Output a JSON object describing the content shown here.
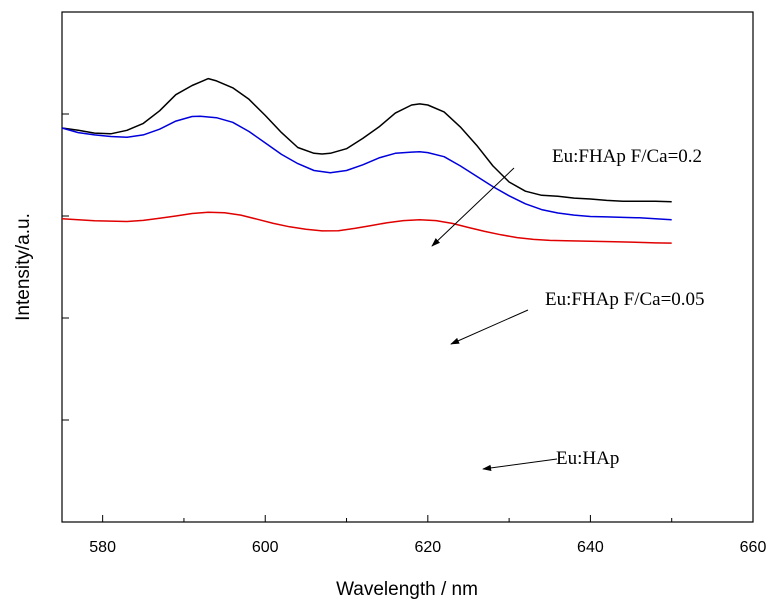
{
  "chart_data": {
    "type": "line",
    "title": "",
    "xlabel": "Wavelength / nm",
    "ylabel": "Intensity/a.u.",
    "xlim": [
      575,
      660
    ],
    "ylim": [
      0,
      100
    ],
    "x_ticks": [
      "580",
      "600",
      "620",
      "640",
      "660"
    ],
    "y_tick_labels_shown": false,
    "grid": false,
    "legend": "none (series identified by arrow annotations)",
    "series": [
      {
        "name": "Eu:FHAp  F/Ca=0.2",
        "color": "#000000",
        "points": [
          [
            575,
            49.5
          ],
          [
            577,
            48.5
          ],
          [
            579,
            47.3
          ],
          [
            581,
            47.0
          ],
          [
            583,
            48.5
          ],
          [
            585,
            51.5
          ],
          [
            587,
            57.0
          ],
          [
            589,
            64.0
          ],
          [
            591,
            68.0
          ],
          [
            592,
            69.5
          ],
          [
            593,
            71.0
          ],
          [
            594,
            70.0
          ],
          [
            596,
            67.0
          ],
          [
            598,
            62.0
          ],
          [
            600,
            55.0
          ],
          [
            602,
            47.5
          ],
          [
            604,
            41.0
          ],
          [
            606,
            38.5
          ],
          [
            607,
            38.2
          ],
          [
            608,
            38.5
          ],
          [
            610,
            40.5
          ],
          [
            612,
            45.0
          ],
          [
            614,
            50.0
          ],
          [
            616,
            56.0
          ],
          [
            618,
            59.5
          ],
          [
            619,
            60.0
          ],
          [
            620,
            59.5
          ],
          [
            622,
            56.5
          ],
          [
            624,
            50.0
          ],
          [
            626,
            42.0
          ],
          [
            628,
            33.0
          ],
          [
            630,
            26.0
          ],
          [
            632,
            22.0
          ],
          [
            634,
            20.2
          ],
          [
            636,
            19.8
          ],
          [
            638,
            19.0
          ],
          [
            640,
            18.6
          ],
          [
            642,
            18.0
          ],
          [
            644,
            17.6
          ],
          [
            646,
            17.6
          ],
          [
            648,
            17.6
          ],
          [
            650,
            17.4
          ]
        ]
      },
      {
        "name": "Eu:FHAp  F/Ca=0.05",
        "color": "#0000dd",
        "points": [
          [
            575,
            49.5
          ],
          [
            577,
            47.5
          ],
          [
            579,
            46.5
          ],
          [
            581,
            45.8
          ],
          [
            583,
            45.5
          ],
          [
            585,
            46.5
          ],
          [
            587,
            49.0
          ],
          [
            589,
            52.5
          ],
          [
            591,
            54.5
          ],
          [
            592,
            54.6
          ],
          [
            594,
            54.0
          ],
          [
            596,
            52.0
          ],
          [
            598,
            48.0
          ],
          [
            600,
            43.0
          ],
          [
            602,
            38.0
          ],
          [
            604,
            34.0
          ],
          [
            606,
            31.0
          ],
          [
            608,
            30.0
          ],
          [
            610,
            31.0
          ],
          [
            612,
            33.5
          ],
          [
            614,
            36.5
          ],
          [
            616,
            38.5
          ],
          [
            618,
            39.0
          ],
          [
            619,
            39.2
          ],
          [
            620,
            38.8
          ],
          [
            622,
            37.0
          ],
          [
            624,
            33.0
          ],
          [
            626,
            28.5
          ],
          [
            628,
            24.0
          ],
          [
            630,
            20.0
          ],
          [
            632,
            16.5
          ],
          [
            634,
            14.0
          ],
          [
            636,
            12.5
          ],
          [
            638,
            11.6
          ],
          [
            640,
            11.0
          ],
          [
            642,
            10.8
          ],
          [
            644,
            10.6
          ],
          [
            646,
            10.4
          ],
          [
            648,
            10.0
          ],
          [
            650,
            9.6
          ]
        ]
      },
      {
        "name": "Eu:HAp",
        "color": "#e00000",
        "points": [
          [
            575,
            10.0
          ],
          [
            577,
            9.6
          ],
          [
            579,
            9.1
          ],
          [
            581,
            9.0
          ],
          [
            583,
            8.8
          ],
          [
            585,
            9.3
          ],
          [
            587,
            10.2
          ],
          [
            589,
            11.2
          ],
          [
            591,
            12.3
          ],
          [
            593,
            12.8
          ],
          [
            595,
            12.6
          ],
          [
            597,
            11.6
          ],
          [
            599,
            9.8
          ],
          [
            601,
            8.0
          ],
          [
            603,
            6.5
          ],
          [
            605,
            5.4
          ],
          [
            607,
            4.7
          ],
          [
            609,
            4.8
          ],
          [
            611,
            5.8
          ],
          [
            613,
            7.0
          ],
          [
            615,
            8.3
          ],
          [
            617,
            9.2
          ],
          [
            619,
            9.6
          ],
          [
            621,
            9.2
          ],
          [
            623,
            8.0
          ],
          [
            625,
            6.2
          ],
          [
            627,
            4.5
          ],
          [
            629,
            3.0
          ],
          [
            631,
            1.8
          ],
          [
            633,
            1.0
          ],
          [
            635,
            0.6
          ],
          [
            637,
            0.4
          ],
          [
            640,
            0.2
          ],
          [
            643,
            0.0
          ],
          [
            646,
            -0.3
          ],
          [
            648,
            -0.5
          ],
          [
            650,
            -0.6
          ]
        ]
      }
    ],
    "annotations": [
      {
        "text": "Eu:FHAp  F/Ca=0.2",
        "series": "Eu:FHAp  F/Ca=0.2"
      },
      {
        "text": "Eu:FHAp  F/Ca=0.05",
        "series": "Eu:FHAp  F/Ca=0.05"
      },
      {
        "text": "Eu:HAp",
        "series": "Eu:HAp"
      }
    ]
  }
}
